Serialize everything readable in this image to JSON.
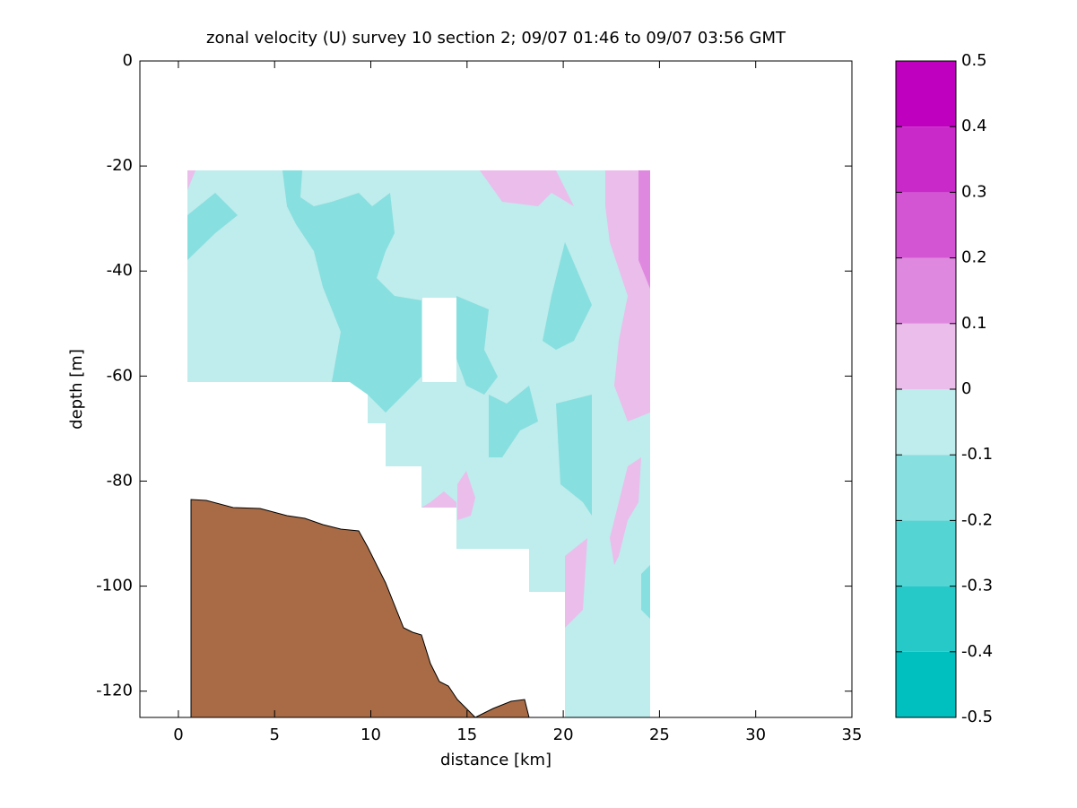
{
  "chart_data": {
    "type": "contour",
    "title": "zonal velocity (U) survey 10 section 2; 09/07 01:46 to 09/07 03:56 GMT",
    "x_label": "distance [km]",
    "y_label": "depth [m]",
    "xlim": [
      -2,
      35
    ],
    "xticks": [
      0,
      5,
      10,
      15,
      20,
      25,
      30,
      35
    ],
    "ylim": [
      -125,
      0
    ],
    "yticks": [
      -120,
      -100,
      -80,
      -60,
      -40,
      -20,
      0
    ],
    "colorbar": {
      "levels": [
        -0.5,
        -0.4,
        -0.3,
        -0.2,
        -0.1,
        0,
        0.1,
        0.2,
        0.3,
        0.4,
        0.5
      ],
      "colors": [
        "#00bfbf",
        "#26c8c8",
        "#55d4d4",
        "#88dfdf",
        "#bfecec",
        "#ebbdeb",
        "#df88df",
        "#d355d3",
        "#c829c8",
        "#bf00bf"
      ]
    },
    "bottom_color": "#a86b45"
  }
}
